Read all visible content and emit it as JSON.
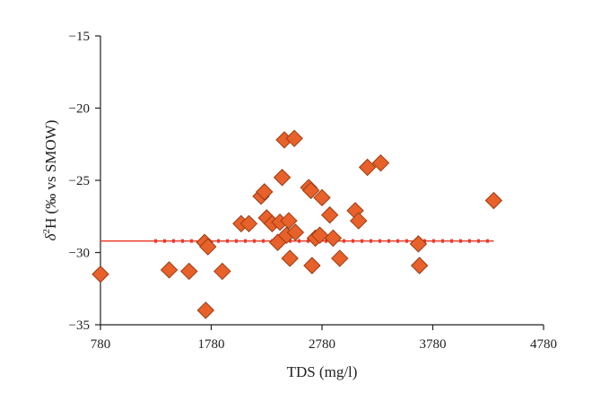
{
  "chart_data": {
    "type": "scatter",
    "xlabel": "TDS (mg/l)",
    "ylabel": {
      "prefix": "δ",
      "sup": "2",
      "main": "H (‰ vs SMOW)"
    },
    "xlim": [
      780,
      4780
    ],
    "ylim": [
      -35,
      -15
    ],
    "xticks": [
      "780",
      "1780",
      "2780",
      "3780",
      "4780"
    ],
    "yticks": [
      "−15",
      "−20",
      "−25",
      "−30",
      "−35"
    ],
    "marker_color": "#e8612a",
    "marker_edge_color": "#9a3b12",
    "line_color": "#e83a2a",
    "series": [
      {
        "values": [
          {
            "x": 780,
            "y": -31.5
          },
          {
            "x": 1400,
            "y": -31.2
          },
          {
            "x": 1580,
            "y": -31.3
          },
          {
            "x": 1720,
            "y": -29.3
          },
          {
            "x": 1750,
            "y": -29.6
          },
          {
            "x": 1730,
            "y": -34.0
          },
          {
            "x": 1880,
            "y": -31.3
          },
          {
            "x": 2050,
            "y": -28.0
          },
          {
            "x": 2120,
            "y": -28.0
          },
          {
            "x": 2230,
            "y": -26.1
          },
          {
            "x": 2260,
            "y": -25.8
          },
          {
            "x": 2280,
            "y": -27.6
          },
          {
            "x": 2330,
            "y": -28.0
          },
          {
            "x": 2380,
            "y": -29.3
          },
          {
            "x": 2400,
            "y": -27.9
          },
          {
            "x": 2420,
            "y": -24.8
          },
          {
            "x": 2440,
            "y": -22.2
          },
          {
            "x": 2460,
            "y": -28.8
          },
          {
            "x": 2480,
            "y": -27.8
          },
          {
            "x": 2490,
            "y": -30.4
          },
          {
            "x": 2530,
            "y": -22.1
          },
          {
            "x": 2540,
            "y": -28.6
          },
          {
            "x": 2660,
            "y": -25.5
          },
          {
            "x": 2680,
            "y": -25.7
          },
          {
            "x": 2690,
            "y": -30.9
          },
          {
            "x": 2720,
            "y": -29.0
          },
          {
            "x": 2760,
            "y": -28.8
          },
          {
            "x": 2780,
            "y": -26.2
          },
          {
            "x": 2850,
            "y": -27.4
          },
          {
            "x": 2880,
            "y": -29.0
          },
          {
            "x": 2940,
            "y": -30.4
          },
          {
            "x": 3080,
            "y": -27.1
          },
          {
            "x": 3110,
            "y": -27.8
          },
          {
            "x": 3190,
            "y": -24.1
          },
          {
            "x": 3310,
            "y": -23.8
          },
          {
            "x": 3650,
            "y": -29.4
          },
          {
            "x": 3660,
            "y": -30.9
          },
          {
            "x": 4330,
            "y": -26.4
          }
        ]
      }
    ],
    "reference_line": {
      "y": -29.2,
      "x_start": 780,
      "x_end": 4330
    },
    "grid": false,
    "legend": "none"
  }
}
